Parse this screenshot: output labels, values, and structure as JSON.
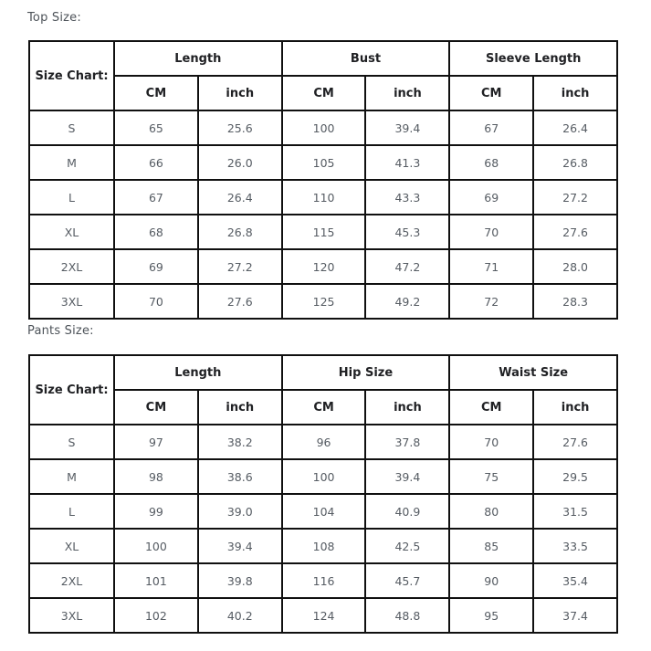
{
  "colors": {
    "background": "#ffffff",
    "table_border": "#101010",
    "header_text": "#202124",
    "value_text": "#565c63",
    "label_text": "#4d5359"
  },
  "chart_data": [
    {
      "type": "table",
      "title": "Top Size:",
      "corner_label": "Size Chart:",
      "group_headers": [
        "Length",
        "Bust",
        "Sleeve Length"
      ],
      "unit_headers": [
        "CM",
        "inch",
        "CM",
        "inch",
        "CM",
        "inch"
      ],
      "row_labels": [
        "S",
        "M",
        "L",
        "XL",
        "2XL",
        "3XL"
      ],
      "rows": [
        [
          "65",
          "25.6",
          "100",
          "39.4",
          "67",
          "26.4"
        ],
        [
          "66",
          "26.0",
          "105",
          "41.3",
          "68",
          "26.8"
        ],
        [
          "67",
          "26.4",
          "110",
          "43.3",
          "69",
          "27.2"
        ],
        [
          "68",
          "26.8",
          "115",
          "45.3",
          "70",
          "27.6"
        ],
        [
          "69",
          "27.2",
          "120",
          "47.2",
          "71",
          "28.0"
        ],
        [
          "70",
          "27.6",
          "125",
          "49.2",
          "72",
          "28.3"
        ]
      ]
    },
    {
      "type": "table",
      "title": "Pants Size:",
      "corner_label": "Size Chart:",
      "group_headers": [
        "Length",
        "Hip Size",
        "Waist Size"
      ],
      "unit_headers": [
        "CM",
        "inch",
        "CM",
        "inch",
        "CM",
        "inch"
      ],
      "row_labels": [
        "S",
        "M",
        "L",
        "XL",
        "2XL",
        "3XL"
      ],
      "rows": [
        [
          "97",
          "38.2",
          "96",
          "37.8",
          "70",
          "27.6"
        ],
        [
          "98",
          "38.6",
          "100",
          "39.4",
          "75",
          "29.5"
        ],
        [
          "99",
          "39.0",
          "104",
          "40.9",
          "80",
          "31.5"
        ],
        [
          "100",
          "39.4",
          "108",
          "42.5",
          "85",
          "33.5"
        ],
        [
          "101",
          "39.8",
          "116",
          "45.7",
          "90",
          "35.4"
        ],
        [
          "102",
          "40.2",
          "124",
          "48.8",
          "95",
          "37.4"
        ]
      ]
    }
  ]
}
